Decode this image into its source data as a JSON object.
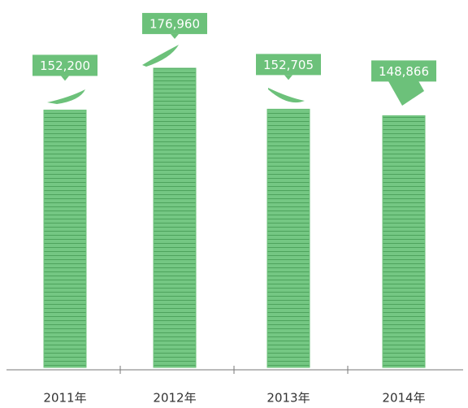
{
  "chart_data": {
    "type": "bar",
    "categories": [
      "2011年",
      "2012年",
      "2013年",
      "2014年"
    ],
    "values": [
      152200,
      176960,
      152705,
      148866
    ],
    "value_labels": [
      "152,200",
      "176,960",
      "152,705",
      "148,866"
    ],
    "color": "#6cc17a",
    "ylim": [
      0,
      200000
    ]
  }
}
